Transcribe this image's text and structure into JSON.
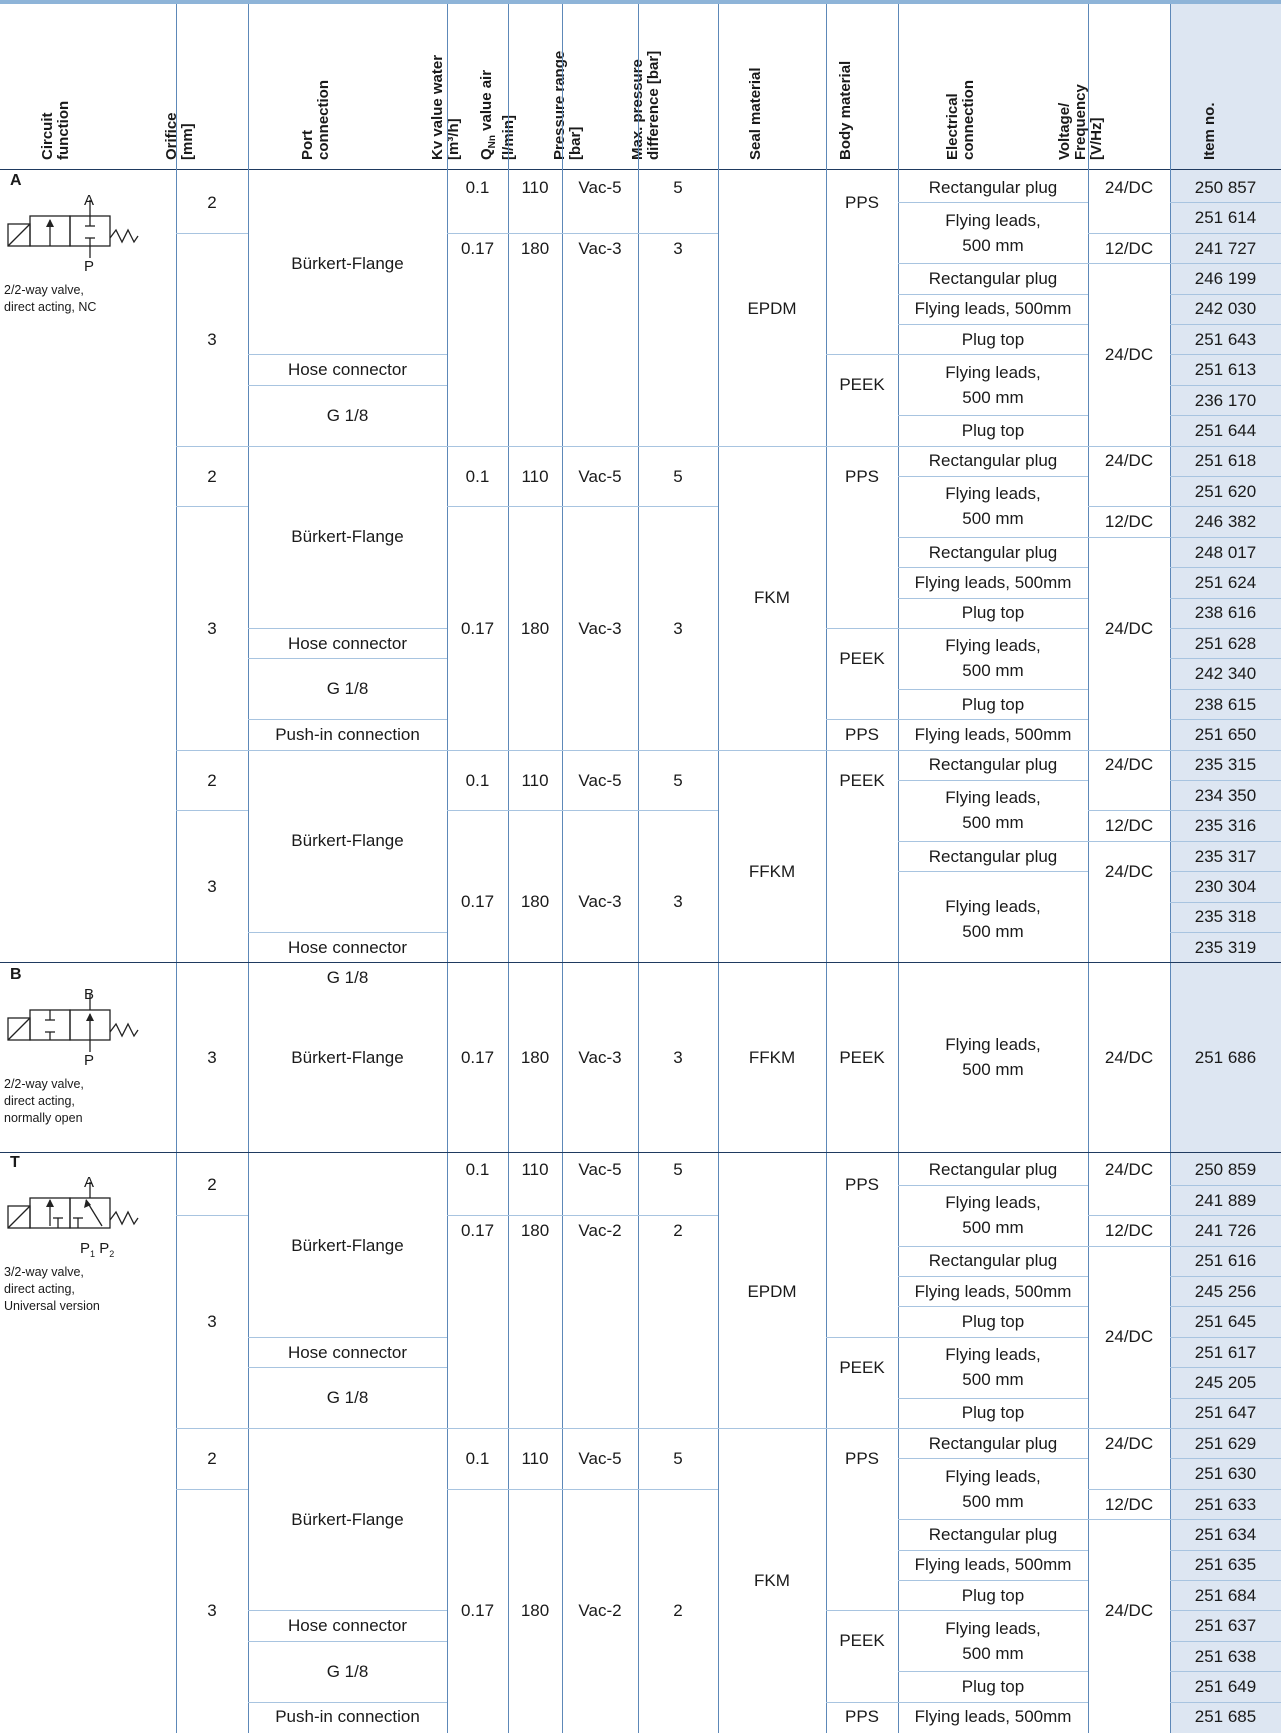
{
  "header": {
    "columns": [
      {
        "key": "circuit",
        "lines": [
          "Circuit",
          "function"
        ]
      },
      {
        "key": "orifice",
        "lines": [
          "Orifice",
          "[mm]"
        ]
      },
      {
        "key": "port",
        "lines": [
          "Port",
          "connection"
        ]
      },
      {
        "key": "kv",
        "lines": [
          "Kv value water",
          "[m³/h]"
        ]
      },
      {
        "key": "qn",
        "lines": [
          "Q",
          "Nn",
          " value air",
          "[l/min]"
        ]
      },
      {
        "key": "pressure",
        "lines": [
          "Pressure range",
          "[bar]"
        ]
      },
      {
        "key": "maxp",
        "lines": [
          "Max. pressure",
          "difference [bar]"
        ]
      },
      {
        "key": "seal",
        "lines": [
          "Seal material"
        ]
      },
      {
        "key": "body",
        "lines": [
          "Body material"
        ]
      },
      {
        "key": "electrical",
        "lines": [
          "Electrical",
          "connection"
        ]
      },
      {
        "key": "voltage",
        "lines": [
          "Voltage/",
          "Frequency",
          "[V/Hz]"
        ]
      },
      {
        "key": "item",
        "lines": [
          "Item no."
        ]
      }
    ]
  },
  "groups": [
    {
      "letter": "A",
      "symbol_labels": {
        "top": "A",
        "bottom": "P"
      },
      "description": [
        "2/2-way valve,",
        "direct acting, NC"
      ]
    },
    {
      "letter": "B",
      "symbol_labels": {
        "top": "B",
        "bottom": "P"
      },
      "description": [
        "2/2-way valve,",
        "direct acting,",
        "normally open"
      ]
    },
    {
      "letter": "T",
      "symbol_labels": {
        "top": "A",
        "bottom": "P",
        "bottom_sub1": "1",
        "bottom2": "P",
        "bottom_sub2": "2"
      },
      "description": [
        "3/2-way valve,",
        "direct acting,",
        "Universal version"
      ]
    }
  ],
  "texts": {
    "o2": "2",
    "o3": "3",
    "bf": "Bürkert-Flange",
    "hose": "Hose connector",
    "g18": "G 1/8",
    "push": "Push-in connection",
    "kv1": "0.1",
    "kv2": "0.17",
    "q1": "110",
    "q2": "180",
    "pr5": "Vac-5",
    "pr3": "Vac-3",
    "pr2": "Vac-2",
    "mp5": "5",
    "mp3": "3",
    "mp2": "2",
    "epdm": "EPDM",
    "fkm": "FKM",
    "ffkm": "FFKM",
    "pps": "PPS",
    "peek": "PEEK",
    "rect": "Rectangular plug",
    "flying": "Flying leads,",
    "mm500": "500 mm",
    "flying500": "Flying leads, 500mm",
    "plugtop": "Plug top",
    "v24": "24/DC",
    "v12": "12/DC"
  },
  "items": {
    "A": [
      "250 857",
      "251 614",
      "241 727",
      "246 199",
      "242 030",
      "251 643",
      "251 613",
      "236 170",
      "251 644",
      "251 618",
      "251 620",
      "246 382",
      "248 017",
      "251 624",
      "238 616",
      "251 628",
      "242 340",
      "238 615",
      "251 650",
      "235 315",
      "234 350",
      "235 316",
      "235 317",
      "230 304",
      "235 318",
      "235 319"
    ],
    "B": [
      "251 686"
    ],
    "T": [
      "250 859",
      "241 889",
      "241 726",
      "251 616",
      "245 256",
      "251 645",
      "251 617",
      "245 205",
      "251 647",
      "251 629",
      "251 630",
      "251 633",
      "251 634",
      "251 635",
      "251 684",
      "251 637",
      "251 638",
      "251 649",
      "251 685"
    ]
  }
}
